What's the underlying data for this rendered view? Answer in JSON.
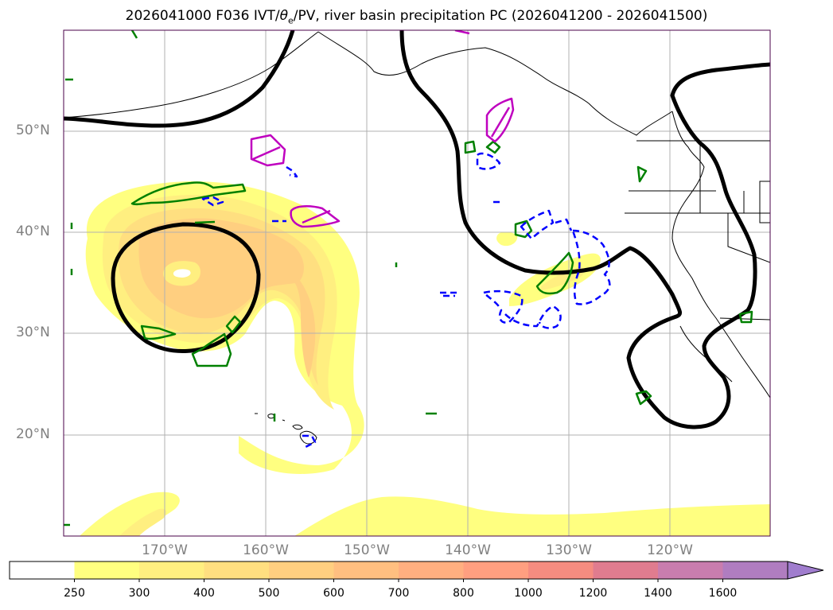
{
  "title": {
    "prefix": "2026041000 F036 IVT/",
    "theta": "θ",
    "sub": "e",
    "suffix": "/PV, river basin precipitation PC (2026041200 - 2026041500)"
  },
  "map": {
    "lat_labels": [
      "50°N",
      "40°N",
      "30°N",
      "20°N"
    ],
    "lon_labels": [
      "170°W",
      "160°W",
      "150°W",
      "140°W",
      "130°W",
      "120°W"
    ],
    "colors": {
      "coast": "#000000",
      "pv_contour": "#000000",
      "green_contour": "#008000",
      "magenta_contour": "#bf00bf",
      "blue_dashed": "#0000ff",
      "grid": "#b0b0b0"
    }
  },
  "colorbar": {
    "labels": [
      "250",
      "300",
      "400",
      "500",
      "600",
      "700",
      "800",
      "1000",
      "1200",
      "1400",
      "1600"
    ],
    "colors": [
      "#ffff80",
      "#ffef80",
      "#ffdf80",
      "#ffcf80",
      "#ffbf80",
      "#ffaf80",
      "#ff9f80",
      "#f58c80",
      "#e07c8f",
      "#c97dae",
      "#b07dc0",
      "#a07dce"
    ]
  }
}
